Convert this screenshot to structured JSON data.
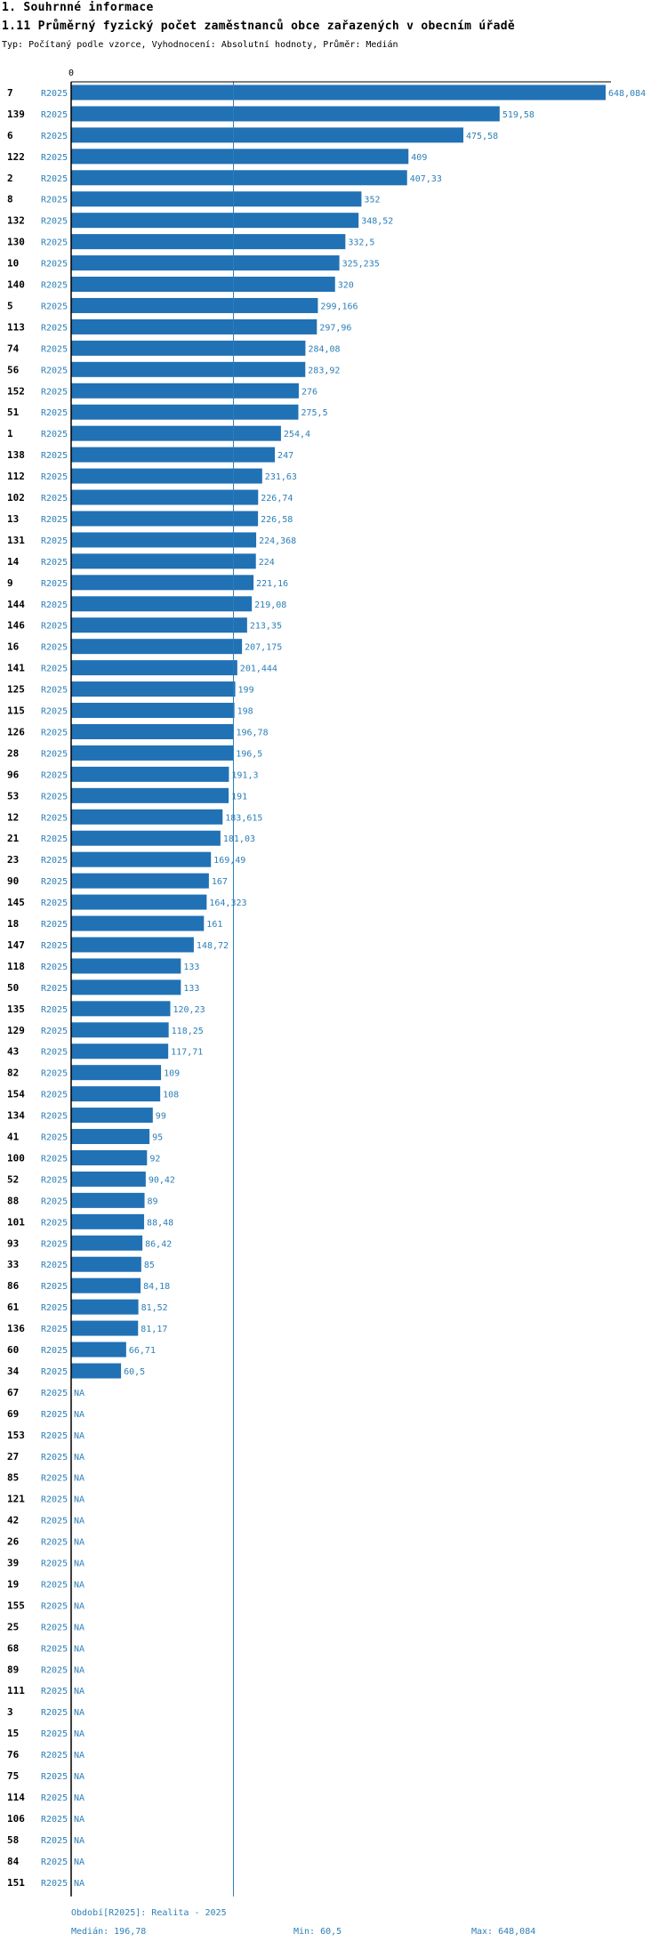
{
  "section_title": "1. Souhrnné informace",
  "chart_title": "1.11 Průměrný fyzický počet zaměstnanců obce zařazených v obecním úřadě",
  "subtitle": "Typ: Počítaný podle vzorce, Vyhodnocení: Absolutní hodnoty, Průměr: Medián",
  "colors": {
    "bar": "#2171b5",
    "label": "#2c7fb8",
    "axis": "#000000",
    "median_line": "#2c7fb8"
  },
  "chart_data": {
    "type": "bar",
    "orientation": "horizontal",
    "title": "1.11 Průměrný fyzický počet zaměstnanců obce zařazených v obecním úřadě",
    "x_axis_tick": "0",
    "xlim": [
      0,
      648.084
    ],
    "median": 196.78,
    "series_name": "R2025",
    "rows": [
      {
        "id": "7",
        "period": "R2025",
        "value": 648.084,
        "label": "648,084"
      },
      {
        "id": "139",
        "period": "R2025",
        "value": 519.58,
        "label": "519,58"
      },
      {
        "id": "6",
        "period": "R2025",
        "value": 475.58,
        "label": "475,58"
      },
      {
        "id": "122",
        "period": "R2025",
        "value": 409,
        "label": "409"
      },
      {
        "id": "2",
        "period": "R2025",
        "value": 407.33,
        "label": "407,33"
      },
      {
        "id": "8",
        "period": "R2025",
        "value": 352,
        "label": "352"
      },
      {
        "id": "132",
        "period": "R2025",
        "value": 348.52,
        "label": "348,52"
      },
      {
        "id": "130",
        "period": "R2025",
        "value": 332.5,
        "label": "332,5"
      },
      {
        "id": "10",
        "period": "R2025",
        "value": 325.235,
        "label": "325,235"
      },
      {
        "id": "140",
        "period": "R2025",
        "value": 320,
        "label": "320"
      },
      {
        "id": "5",
        "period": "R2025",
        "value": 299.166,
        "label": "299,166"
      },
      {
        "id": "113",
        "period": "R2025",
        "value": 297.96,
        "label": "297,96"
      },
      {
        "id": "74",
        "period": "R2025",
        "value": 284.08,
        "label": "284,08"
      },
      {
        "id": "56",
        "period": "R2025",
        "value": 283.92,
        "label": "283,92"
      },
      {
        "id": "152",
        "period": "R2025",
        "value": 276,
        "label": "276"
      },
      {
        "id": "51",
        "period": "R2025",
        "value": 275.5,
        "label": "275,5"
      },
      {
        "id": "1",
        "period": "R2025",
        "value": 254.4,
        "label": "254,4"
      },
      {
        "id": "138",
        "period": "R2025",
        "value": 247,
        "label": "247"
      },
      {
        "id": "112",
        "period": "R2025",
        "value": 231.63,
        "label": "231,63"
      },
      {
        "id": "102",
        "period": "R2025",
        "value": 226.74,
        "label": "226,74"
      },
      {
        "id": "13",
        "period": "R2025",
        "value": 226.58,
        "label": "226,58"
      },
      {
        "id": "131",
        "period": "R2025",
        "value": 224.368,
        "label": "224,368"
      },
      {
        "id": "14",
        "period": "R2025",
        "value": 224,
        "label": "224"
      },
      {
        "id": "9",
        "period": "R2025",
        "value": 221.16,
        "label": "221,16"
      },
      {
        "id": "144",
        "period": "R2025",
        "value": 219.08,
        "label": "219,08"
      },
      {
        "id": "146",
        "period": "R2025",
        "value": 213.35,
        "label": "213,35"
      },
      {
        "id": "16",
        "period": "R2025",
        "value": 207.175,
        "label": "207,175"
      },
      {
        "id": "141",
        "period": "R2025",
        "value": 201.444,
        "label": "201,444"
      },
      {
        "id": "125",
        "period": "R2025",
        "value": 199,
        "label": "199"
      },
      {
        "id": "115",
        "period": "R2025",
        "value": 198,
        "label": "198"
      },
      {
        "id": "126",
        "period": "R2025",
        "value": 196.78,
        "label": "196,78"
      },
      {
        "id": "28",
        "period": "R2025",
        "value": 196.5,
        "label": "196,5"
      },
      {
        "id": "96",
        "period": "R2025",
        "value": 191.3,
        "label": "191,3"
      },
      {
        "id": "53",
        "period": "R2025",
        "value": 191,
        "label": "191"
      },
      {
        "id": "12",
        "period": "R2025",
        "value": 183.615,
        "label": "183,615"
      },
      {
        "id": "21",
        "period": "R2025",
        "value": 181.03,
        "label": "181,03"
      },
      {
        "id": "23",
        "period": "R2025",
        "value": 169.49,
        "label": "169,49"
      },
      {
        "id": "90",
        "period": "R2025",
        "value": 167,
        "label": "167"
      },
      {
        "id": "145",
        "period": "R2025",
        "value": 164.323,
        "label": "164,323"
      },
      {
        "id": "18",
        "period": "R2025",
        "value": 161,
        "label": "161"
      },
      {
        "id": "147",
        "period": "R2025",
        "value": 148.72,
        "label": "148,72"
      },
      {
        "id": "118",
        "period": "R2025",
        "value": 133,
        "label": "133"
      },
      {
        "id": "50",
        "period": "R2025",
        "value": 133,
        "label": "133"
      },
      {
        "id": "135",
        "period": "R2025",
        "value": 120.23,
        "label": "120,23"
      },
      {
        "id": "129",
        "period": "R2025",
        "value": 118.25,
        "label": "118,25"
      },
      {
        "id": "43",
        "period": "R2025",
        "value": 117.71,
        "label": "117,71"
      },
      {
        "id": "82",
        "period": "R2025",
        "value": 109,
        "label": "109"
      },
      {
        "id": "154",
        "period": "R2025",
        "value": 108,
        "label": "108"
      },
      {
        "id": "134",
        "period": "R2025",
        "value": 99,
        "label": "99"
      },
      {
        "id": "41",
        "period": "R2025",
        "value": 95,
        "label": "95"
      },
      {
        "id": "100",
        "period": "R2025",
        "value": 92,
        "label": "92"
      },
      {
        "id": "52",
        "period": "R2025",
        "value": 90.42,
        "label": "90,42"
      },
      {
        "id": "88",
        "period": "R2025",
        "value": 89,
        "label": "89"
      },
      {
        "id": "101",
        "period": "R2025",
        "value": 88.48,
        "label": "88,48"
      },
      {
        "id": "93",
        "period": "R2025",
        "value": 86.42,
        "label": "86,42"
      },
      {
        "id": "33",
        "period": "R2025",
        "value": 85,
        "label": "85"
      },
      {
        "id": "86",
        "period": "R2025",
        "value": 84.18,
        "label": "84,18"
      },
      {
        "id": "61",
        "period": "R2025",
        "value": 81.52,
        "label": "81,52"
      },
      {
        "id": "136",
        "period": "R2025",
        "value": 81.17,
        "label": "81,17"
      },
      {
        "id": "60",
        "period": "R2025",
        "value": 66.71,
        "label": "66,71"
      },
      {
        "id": "34",
        "period": "R2025",
        "value": 60.5,
        "label": "60,5"
      },
      {
        "id": "67",
        "period": "R2025",
        "value": null,
        "label": "NA"
      },
      {
        "id": "69",
        "period": "R2025",
        "value": null,
        "label": "NA"
      },
      {
        "id": "153",
        "period": "R2025",
        "value": null,
        "label": "NA"
      },
      {
        "id": "27",
        "period": "R2025",
        "value": null,
        "label": "NA"
      },
      {
        "id": "85",
        "period": "R2025",
        "value": null,
        "label": "NA"
      },
      {
        "id": "121",
        "period": "R2025",
        "value": null,
        "label": "NA"
      },
      {
        "id": "42",
        "period": "R2025",
        "value": null,
        "label": "NA"
      },
      {
        "id": "26",
        "period": "R2025",
        "value": null,
        "label": "NA"
      },
      {
        "id": "39",
        "period": "R2025",
        "value": null,
        "label": "NA"
      },
      {
        "id": "19",
        "period": "R2025",
        "value": null,
        "label": "NA"
      },
      {
        "id": "155",
        "period": "R2025",
        "value": null,
        "label": "NA"
      },
      {
        "id": "25",
        "period": "R2025",
        "value": null,
        "label": "NA"
      },
      {
        "id": "68",
        "period": "R2025",
        "value": null,
        "label": "NA"
      },
      {
        "id": "89",
        "period": "R2025",
        "value": null,
        "label": "NA"
      },
      {
        "id": "111",
        "period": "R2025",
        "value": null,
        "label": "NA"
      },
      {
        "id": "3",
        "period": "R2025",
        "value": null,
        "label": "NA"
      },
      {
        "id": "15",
        "period": "R2025",
        "value": null,
        "label": "NA"
      },
      {
        "id": "76",
        "period": "R2025",
        "value": null,
        "label": "NA"
      },
      {
        "id": "75",
        "period": "R2025",
        "value": null,
        "label": "NA"
      },
      {
        "id": "114",
        "period": "R2025",
        "value": null,
        "label": "NA"
      },
      {
        "id": "106",
        "period": "R2025",
        "value": null,
        "label": "NA"
      },
      {
        "id": "58",
        "period": "R2025",
        "value": null,
        "label": "NA"
      },
      {
        "id": "84",
        "period": "R2025",
        "value": null,
        "label": "NA"
      },
      {
        "id": "151",
        "period": "R2025",
        "value": null,
        "label": "NA"
      }
    ]
  },
  "footer": {
    "period": "Období[R2025]: Realita - 2025",
    "median": "Medián: 196,78",
    "min": "Min: 60,5",
    "max": "Max: 648,084"
  }
}
